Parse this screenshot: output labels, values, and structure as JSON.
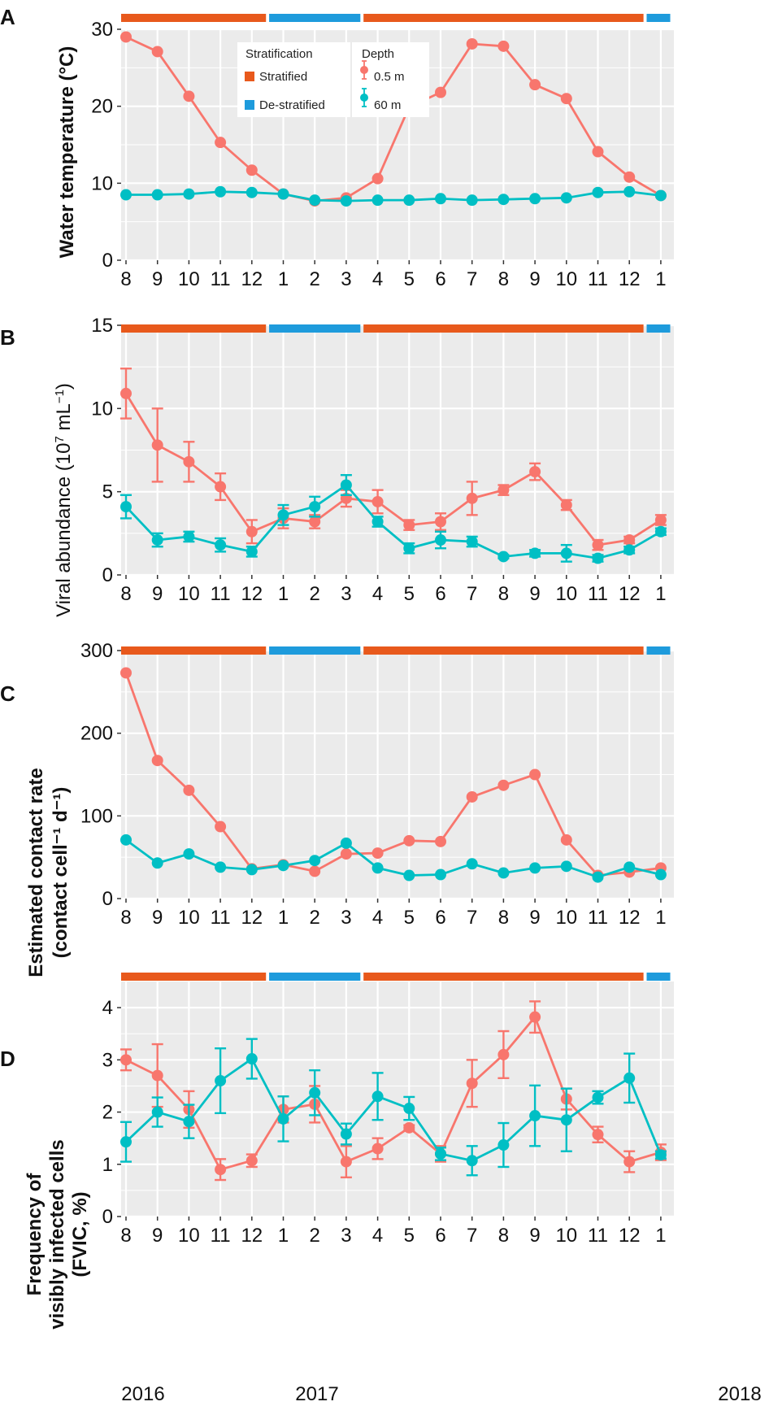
{
  "colors": {
    "surface": "#F8766D",
    "deep": "#00BFC4",
    "stratified": "#E8591C",
    "destratified": "#1E9BDC",
    "panel_bg": "#EBEBEB",
    "grid": "#FFFFFF"
  },
  "month_labels": [
    "8",
    "9",
    "10",
    "11",
    "12",
    "1",
    "2",
    "3",
    "4",
    "5",
    "6",
    "7",
    "8",
    "9",
    "10",
    "11",
    "12",
    "1"
  ],
  "year_labels": [
    "2016",
    "2017",
    "2018"
  ],
  "stratification_bars": [
    {
      "label": "Stratified",
      "start": 0,
      "end": 4.45
    },
    {
      "label": "De-stratified",
      "start": 4.55,
      "end": 7.45
    },
    {
      "label": "Stratified",
      "start": 7.55,
      "end": 16.45
    },
    {
      "label": "De-stratified",
      "start": 16.55,
      "end": 17.3
    }
  ],
  "legend": {
    "stratification_title": "Stratification",
    "stratified_label": "Stratified",
    "destratified_label": "De-stratified",
    "depth_title": "Depth",
    "surface_label": "0.5 m",
    "deep_label": "60 m"
  },
  "chart_data": [
    {
      "panel": "A",
      "type": "line",
      "ylabel": "Water temperature (°C)",
      "ylim": [
        0,
        30
      ],
      "yticks": [
        0,
        10,
        20,
        30
      ],
      "series": [
        {
          "name": "0.5 m",
          "values": [
            29.0,
            27.1,
            21.3,
            15.3,
            11.7,
            8.6,
            7.7,
            8.1,
            10.6,
            19.9,
            21.8,
            28.1,
            27.8,
            22.8,
            21.0,
            14.1,
            10.8,
            8.4
          ]
        },
        {
          "name": "60 m",
          "values": [
            8.5,
            8.5,
            8.6,
            8.9,
            8.8,
            8.6,
            7.8,
            7.7,
            7.8,
            7.8,
            8.0,
            7.8,
            7.9,
            8.0,
            8.1,
            8.8,
            8.9,
            8.4
          ]
        }
      ]
    },
    {
      "panel": "B",
      "type": "line",
      "ylabel": "Viral abundance (10⁷ mL⁻¹)",
      "ylim": [
        0,
        15
      ],
      "yticks": [
        0,
        5,
        10,
        15
      ],
      "series": [
        {
          "name": "0.5 m",
          "values": [
            10.9,
            7.8,
            6.8,
            5.3,
            2.6,
            3.4,
            3.2,
            4.6,
            4.4,
            3.0,
            3.2,
            4.6,
            5.1,
            6.2,
            4.2,
            1.8,
            2.1,
            3.3
          ],
          "errors": [
            1.5,
            2.2,
            1.2,
            0.8,
            0.7,
            0.6,
            0.4,
            0.5,
            0.7,
            0.3,
            0.5,
            1.0,
            0.3,
            0.5,
            0.3,
            0.3,
            0.2,
            0.3
          ]
        },
        {
          "name": "60 m",
          "values": [
            4.1,
            2.1,
            2.3,
            1.8,
            1.4,
            3.6,
            4.1,
            5.4,
            3.2,
            1.6,
            2.1,
            2.0,
            1.1,
            1.3,
            1.3,
            1.0,
            1.5,
            2.6
          ],
          "errors": [
            0.7,
            0.4,
            0.3,
            0.4,
            0.3,
            0.6,
            0.6,
            0.6,
            0.3,
            0.3,
            0.5,
            0.3,
            0.1,
            0.2,
            0.5,
            0.2,
            0.2,
            0.2
          ]
        }
      ]
    },
    {
      "panel": "C",
      "type": "line",
      "ylabel": "Estimated contact rate",
      "ylabel2": "(contact cell⁻¹ d⁻¹)",
      "ylim": [
        0,
        300
      ],
      "yticks": [
        0,
        100,
        200,
        300
      ],
      "series": [
        {
          "name": "0.5 m",
          "values": [
            273,
            167,
            131,
            87,
            36,
            41,
            33,
            54,
            55,
            70,
            69,
            123,
            137,
            150,
            71,
            28,
            32,
            37
          ]
        },
        {
          "name": "60 m",
          "values": [
            71,
            43,
            54,
            38,
            35,
            40,
            46,
            67,
            37,
            28,
            29,
            42,
            31,
            37,
            39,
            26,
            38,
            29
          ]
        }
      ]
    },
    {
      "panel": "D",
      "type": "line",
      "ylabel": "Frequency of",
      "ylabel2": "visibly infected cells",
      "ylabel3": "(FVIC, %)",
      "ylim": [
        0,
        4.5
      ],
      "yticks": [
        0,
        1,
        2,
        3,
        4
      ],
      "series": [
        {
          "name": "0.5 m",
          "values": [
            3.0,
            2.7,
            2.05,
            0.9,
            1.07,
            2.05,
            2.15,
            1.05,
            1.3,
            1.7,
            1.2,
            2.55,
            3.1,
            3.82,
            2.25,
            1.57,
            1.05,
            1.23
          ],
          "errors": [
            0.2,
            0.6,
            0.35,
            0.2,
            0.12,
            0.25,
            0.35,
            0.3,
            0.2,
            0.05,
            0.15,
            0.45,
            0.45,
            0.3,
            0.2,
            0.15,
            0.2,
            0.15
          ]
        },
        {
          "name": "60 m",
          "values": [
            1.43,
            2.0,
            1.82,
            2.6,
            3.02,
            1.87,
            2.37,
            1.58,
            2.3,
            2.07,
            1.2,
            1.07,
            1.37,
            1.93,
            1.85,
            2.28,
            2.65,
            1.18
          ],
          "errors": [
            0.38,
            0.28,
            0.32,
            0.62,
            0.38,
            0.43,
            0.43,
            0.2,
            0.45,
            0.22,
            0.12,
            0.28,
            0.42,
            0.58,
            0.6,
            0.12,
            0.47,
            0.07
          ]
        }
      ]
    }
  ]
}
